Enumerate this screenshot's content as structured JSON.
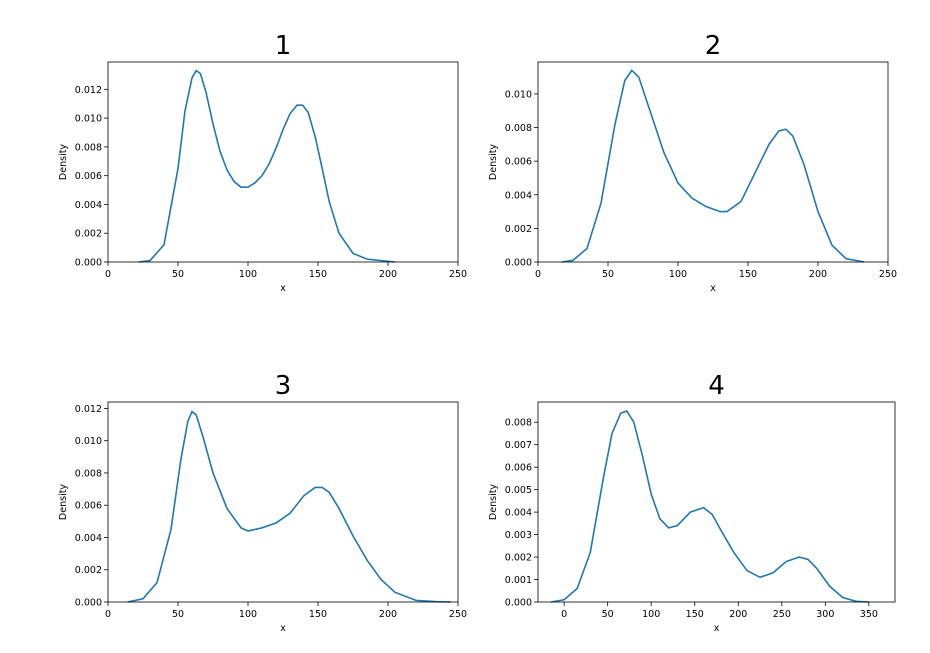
{
  "chart_data": [
    {
      "type": "line",
      "title": "1",
      "xlabel": "x",
      "ylabel": "Density",
      "xlim": [
        0,
        250
      ],
      "ylim": [
        0,
        0.0139
      ],
      "xticks": [
        0,
        50,
        100,
        150,
        200,
        250
      ],
      "yticks": [
        0.0,
        0.002,
        0.004,
        0.006,
        0.008,
        0.01,
        0.012
      ],
      "ytick_decimals": 3,
      "grid": false,
      "series": [
        {
          "color": "#1f77b4",
          "x": [
            22,
            30,
            40,
            50,
            55,
            60,
            63,
            66,
            70,
            75,
            80,
            85,
            90,
            95,
            100,
            105,
            110,
            115,
            120,
            125,
            130,
            135,
            139,
            143,
            148,
            153,
            158,
            165,
            175,
            185,
            195,
            205
          ],
          "y": [
            0,
            0.0001,
            0.0012,
            0.0065,
            0.0105,
            0.0128,
            0.0133,
            0.0131,
            0.0118,
            0.0096,
            0.0077,
            0.0064,
            0.0056,
            0.0052,
            0.0052,
            0.0055,
            0.006,
            0.0068,
            0.0079,
            0.0092,
            0.0103,
            0.0109,
            0.0109,
            0.0104,
            0.0087,
            0.0065,
            0.0042,
            0.002,
            0.0006,
            0.0002,
            0.0001,
            0
          ]
        }
      ]
    },
    {
      "type": "line",
      "title": "2",
      "xlabel": "x",
      "ylabel": "Density",
      "xlim": [
        0,
        250
      ],
      "ylim": [
        0,
        0.0119
      ],
      "xticks": [
        0,
        50,
        100,
        150,
        200,
        250
      ],
      "yticks": [
        0.0,
        0.002,
        0.004,
        0.006,
        0.008,
        0.01
      ],
      "ytick_decimals": 3,
      "grid": false,
      "series": [
        {
          "color": "#1f77b4",
          "x": [
            17,
            25,
            35,
            45,
            55,
            62,
            67,
            72,
            80,
            90,
            100,
            110,
            120,
            130,
            135,
            145,
            155,
            165,
            172,
            177,
            182,
            190,
            200,
            210,
            220,
            233
          ],
          "y": [
            0,
            0.0001,
            0.0008,
            0.0035,
            0.0082,
            0.0108,
            0.0114,
            0.011,
            0.009,
            0.0065,
            0.0047,
            0.0038,
            0.0033,
            0.003,
            0.003,
            0.0036,
            0.0053,
            0.007,
            0.0078,
            0.0079,
            0.0075,
            0.0058,
            0.003,
            0.001,
            0.0002,
            0
          ]
        }
      ]
    },
    {
      "type": "line",
      "title": "3",
      "xlabel": "x",
      "ylabel": "Density",
      "xlim": [
        0,
        250
      ],
      "ylim": [
        0,
        0.0124
      ],
      "xticks": [
        0,
        50,
        100,
        150,
        200,
        250
      ],
      "yticks": [
        0.0,
        0.002,
        0.004,
        0.006,
        0.008,
        0.01,
        0.012
      ],
      "ytick_decimals": 3,
      "grid": false,
      "series": [
        {
          "color": "#1f77b4",
          "x": [
            14,
            25,
            35,
            45,
            52,
            57,
            60,
            63,
            68,
            75,
            85,
            95,
            100,
            110,
            120,
            130,
            140,
            148,
            153,
            158,
            165,
            175,
            185,
            195,
            205,
            220,
            235,
            245
          ],
          "y": [
            0,
            0.0002,
            0.0012,
            0.0045,
            0.0088,
            0.0112,
            0.0118,
            0.0116,
            0.0102,
            0.008,
            0.0058,
            0.0046,
            0.0044,
            0.0046,
            0.0049,
            0.0055,
            0.0066,
            0.0071,
            0.0071,
            0.0068,
            0.0058,
            0.0041,
            0.0026,
            0.0014,
            0.0006,
            0.0001,
            2e-05,
            0
          ]
        }
      ]
    },
    {
      "type": "line",
      "title": "4",
      "xlabel": "x",
      "ylabel": "Density",
      "xlim": [
        -30,
        380
      ],
      "ylim": [
        0,
        0.0089
      ],
      "xticks": [
        0,
        50,
        100,
        150,
        200,
        250,
        300,
        350
      ],
      "yticks": [
        0.0,
        0.001,
        0.002,
        0.003,
        0.004,
        0.005,
        0.006,
        0.007,
        0.008
      ],
      "ytick_decimals": 3,
      "grid": false,
      "series": [
        {
          "color": "#1f77b4",
          "x": [
            -15,
            0,
            15,
            30,
            45,
            55,
            65,
            72,
            80,
            90,
            100,
            110,
            120,
            130,
            145,
            160,
            170,
            180,
            195,
            210,
            225,
            240,
            255,
            270,
            280,
            290,
            305,
            320,
            335,
            350
          ],
          "y": [
            0,
            0.0001,
            0.0006,
            0.0022,
            0.0055,
            0.0075,
            0.0084,
            0.0085,
            0.008,
            0.0065,
            0.0048,
            0.0037,
            0.0033,
            0.0034,
            0.004,
            0.0042,
            0.0039,
            0.0032,
            0.0022,
            0.0014,
            0.0011,
            0.0013,
            0.0018,
            0.002,
            0.0019,
            0.0015,
            0.0007,
            0.0002,
            3e-05,
            0
          ]
        }
      ]
    }
  ]
}
